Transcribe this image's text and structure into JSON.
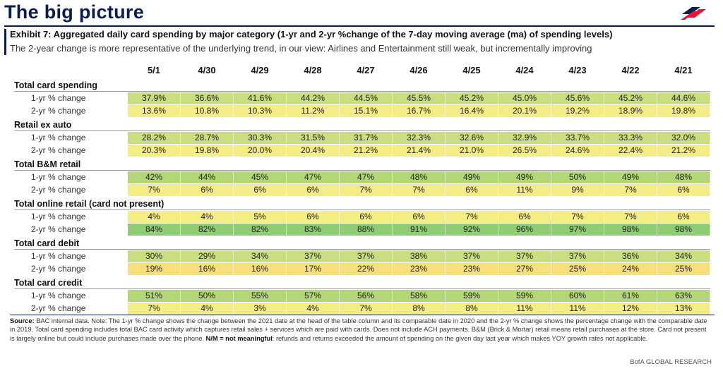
{
  "page_title": "The big picture",
  "exhibit": {
    "title": "Exhibit 7: Aggregated daily card spending by major category (1-yr and 2-yr %change of the 7-day moving average (ma) of spending levels)",
    "subtitle": "The 2-year change is more representative of the underlying trend, in our view: Airlines and Entertainment still weak, but incrementally improving"
  },
  "colors": {
    "navy": "#0b1d4e",
    "logo_red": "#e31837",
    "cell_yellow_green": "#c9df7e",
    "cell_yellow": "#f4ec84",
    "cell_green": "#8fcd72"
  },
  "dates": [
    "5/1",
    "4/30",
    "4/29",
    "4/28",
    "4/27",
    "4/26",
    "4/25",
    "4/24",
    "4/23",
    "4/22",
    "4/21"
  ],
  "categories": [
    {
      "name": "Total card spending",
      "rows": [
        {
          "label": "1-yr % change",
          "values": [
            "37.9%",
            "36.6%",
            "41.6%",
            "44.2%",
            "44.5%",
            "45.5%",
            "45.2%",
            "45.0%",
            "45.6%",
            "45.2%",
            "44.6%"
          ]
        },
        {
          "label": "2-yr % change",
          "values": [
            "13.6%",
            "10.8%",
            "10.3%",
            "11.2%",
            "15.1%",
            "16.7%",
            "16.4%",
            "20.1%",
            "19.2%",
            "18.9%",
            "19.8%"
          ]
        }
      ]
    },
    {
      "name": "Retail ex auto",
      "rows": [
        {
          "label": "1-yr % change",
          "values": [
            "28.2%",
            "28.7%",
            "30.3%",
            "31.5%",
            "31.7%",
            "32.3%",
            "32.6%",
            "32.9%",
            "33.7%",
            "33.3%",
            "32.0%"
          ]
        },
        {
          "label": "2-yr % change",
          "values": [
            "20.3%",
            "19.8%",
            "20.0%",
            "20.4%",
            "21.2%",
            "21.4%",
            "21.0%",
            "26.5%",
            "24.6%",
            "22.4%",
            "21.2%"
          ]
        }
      ]
    },
    {
      "name": "Total B&M retail",
      "rows": [
        {
          "label": "1-yr % change",
          "values": [
            "42%",
            "44%",
            "45%",
            "47%",
            "47%",
            "48%",
            "49%",
            "49%",
            "50%",
            "49%",
            "48%"
          ]
        },
        {
          "label": "2-yr % change",
          "values": [
            "7%",
            "6%",
            "6%",
            "6%",
            "7%",
            "7%",
            "6%",
            "11%",
            "9%",
            "7%",
            "6%"
          ]
        }
      ]
    },
    {
      "name": "Total online retail (card not present)",
      "rows": [
        {
          "label": "1-yr % change",
          "values": [
            "4%",
            "4%",
            "5%",
            "6%",
            "6%",
            "6%",
            "7%",
            "6%",
            "7%",
            "7%",
            "6%"
          ]
        },
        {
          "label": "2-yr % change",
          "values": [
            "84%",
            "82%",
            "82%",
            "83%",
            "88%",
            "91%",
            "92%",
            "96%",
            "97%",
            "98%",
            "98%"
          ]
        }
      ]
    },
    {
      "name": "Total card debit",
      "rows": [
        {
          "label": "1-yr % change",
          "values": [
            "30%",
            "29%",
            "34%",
            "37%",
            "37%",
            "38%",
            "37%",
            "37%",
            "37%",
            "36%",
            "34%"
          ]
        },
        {
          "label": "2-yr % change",
          "values": [
            "19%",
            "16%",
            "16%",
            "17%",
            "22%",
            "23%",
            "23%",
            "27%",
            "25%",
            "24%",
            "25%"
          ]
        }
      ]
    },
    {
      "name": "Total card credit",
      "rows": [
        {
          "label": "1-yr % change",
          "values": [
            "51%",
            "50%",
            "55%",
            "57%",
            "56%",
            "58%",
            "59%",
            "59%",
            "60%",
            "61%",
            "63%"
          ]
        },
        {
          "label": "2-yr % change",
          "values": [
            "7%",
            "4%",
            "3%",
            "4%",
            "7%",
            "8%",
            "8%",
            "11%",
            "11%",
            "12%",
            "13%"
          ]
        }
      ]
    }
  ],
  "footer": {
    "source_label": "Source:",
    "source_text_1": " BAC internal data. Note: The 1-yr % change shows the change between the 2021 date at the head of the table column and its comparable date in 2020 and the 2-yr % change shows the percentage change with the comparable date in 2019. Total card spending includes total BAC card activity which captures retail sales + services which are paid with cards. Does not include ACH payments. B&M (Brick & Mortar) retail means retail purchases at the store. Card not present is largely online but could include purchases made over the phone. ",
    "nm_label": "N/M = not meaningful",
    "source_text_2": ": refunds and returns exceeded the amount of spending on the given day last year which makes YOY growth rates not applicable.",
    "brand": "BofA GLOBAL RESEARCH"
  }
}
